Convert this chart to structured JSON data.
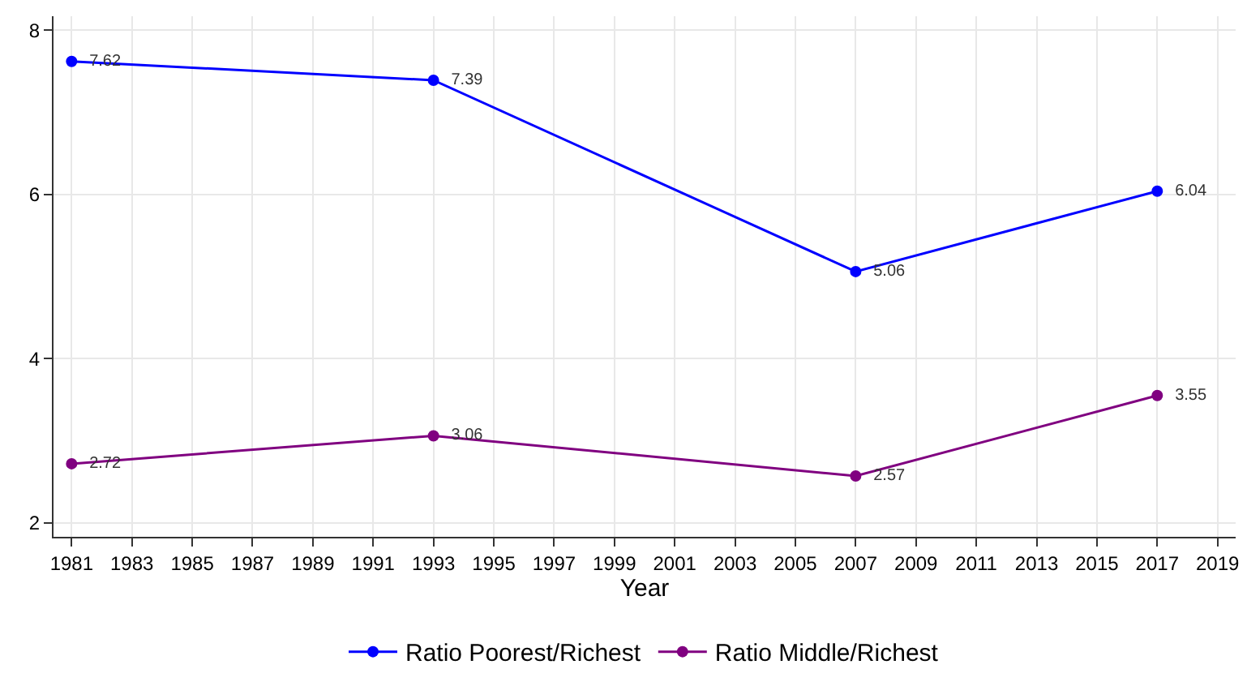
{
  "chart_data": {
    "type": "line",
    "xlabel": "Year",
    "x": [
      1981,
      1993,
      2007,
      2017
    ],
    "series": [
      {
        "name": "Ratio Poorest/Richest",
        "color": "#0000ff",
        "values": [
          7.62,
          7.39,
          5.06,
          6.04
        ]
      },
      {
        "name": "Ratio Middle/Richest",
        "color": "#800080",
        "values": [
          2.72,
          3.06,
          2.57,
          3.55
        ]
      }
    ],
    "xlim": [
      1980.4,
      2019.6
    ],
    "xticks": [
      1981,
      1983,
      1985,
      1987,
      1989,
      1991,
      1993,
      1995,
      1997,
      1999,
      2001,
      2003,
      2005,
      2007,
      2009,
      2011,
      2013,
      2015,
      2017,
      2019
    ],
    "ylim": [
      1.83,
      8.17
    ],
    "yticks": [
      2,
      4,
      6,
      8
    ],
    "grid": true,
    "legend": "bottom",
    "marker": "circle",
    "line_style": "solid",
    "data_labels": true
  }
}
